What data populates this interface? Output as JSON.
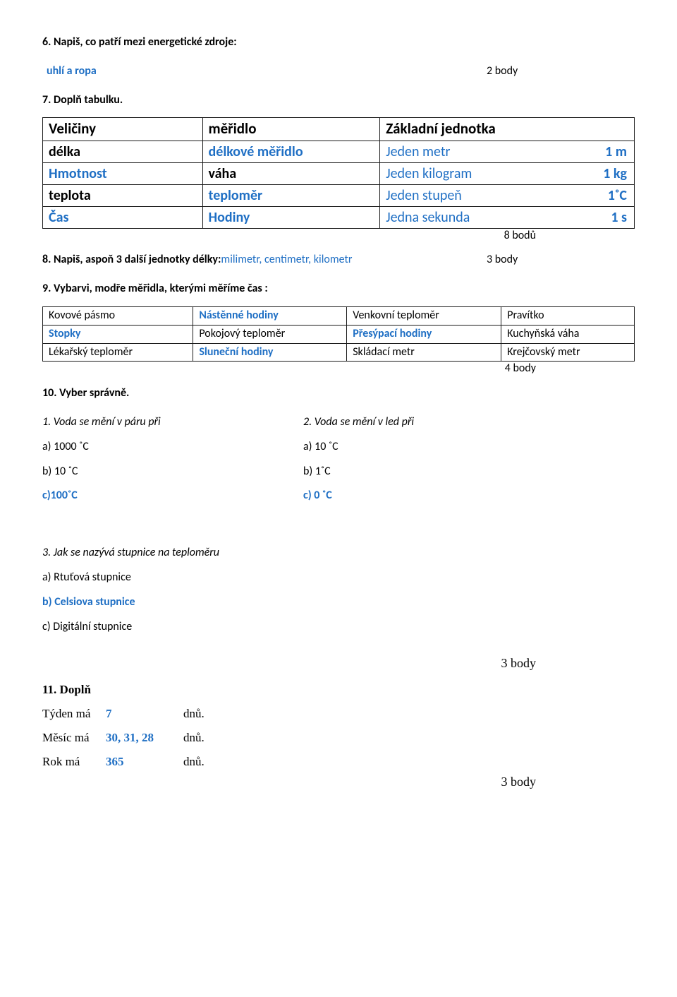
{
  "q6": {
    "title": "6. Napiš, co patří mezi energetické zdroje",
    "answer": "uhlí  a ropa",
    "points": "2 body"
  },
  "q7": {
    "title": "7. Doplň tabulku.",
    "h1": "Veličiny",
    "h2": "měřidlo",
    "h3": "Základní jednotka",
    "rows": [
      {
        "c1": "délka",
        "c2": "délkové měřidlo",
        "u": "Jeden metr",
        "a": "1 m"
      },
      {
        "c1": "Hmotnost",
        "c2": "váha",
        "u": "Jeden kilogram",
        "a": "1 kg"
      },
      {
        "c1": "teplota",
        "c2": "teploměr",
        "u": "Jeden stupeň",
        "a": "1˚C"
      },
      {
        "c1": "Čas",
        "c2": "Hodiny",
        "u": "Jedna sekunda",
        "a": "1 s"
      }
    ],
    "points": "8 bodů"
  },
  "q8": {
    "label": "8. Napiš, aspoň 3 další jednotky délky:",
    "answer": "milimetr,  centimetr,  kilometr",
    "points": "3 body"
  },
  "q9": {
    "title": "9. Vybarvi, modře měřidla, kterými měříme čas :",
    "rows": [
      [
        "Kovové pásmo",
        "Nástěnné hodiny",
        "Venkovní teploměr",
        "Pravítko"
      ],
      [
        "Stopky",
        "Pokojový teploměr",
        "Přesýpací hodiny",
        "Kuchyňská váha"
      ],
      [
        "Lékařský teploměr",
        "Sluneční hodiny",
        "Skládací metr",
        "Krejčovský metr"
      ]
    ],
    "blue_cells": [
      [
        0,
        1
      ],
      [
        1,
        0
      ],
      [
        1,
        2
      ],
      [
        2,
        1
      ]
    ],
    "points": "4 body"
  },
  "q10": {
    "title": "10. Vyber správně.",
    "sub1": "1. Voda se mění v páru při",
    "sub2": "2. Voda se mění v led při",
    "col1": [
      "a) 1000 ˚C",
      "b) 10 ˚C",
      "c)100˚C"
    ],
    "col2": [
      "a) 10 ˚C",
      "b)  1˚C",
      "c) 0 ˚C"
    ],
    "col1_blue_idx": 2,
    "col2_blue_idx": 2,
    "sub3": "3. Jak se nazývá stupnice na teploměru",
    "opts3": [
      "a) Rtuťová stupnice",
      "b) Celsiova stupnice",
      "c) Digitální stupnice"
    ],
    "opts3_blue_idx": 1,
    "points": "3 body"
  },
  "q11": {
    "title": "11. Doplň",
    "rows": [
      {
        "lab": "Týden má",
        "val": "7",
        "unit": "dnů."
      },
      {
        "lab": "Měsíc má",
        "val": "30, 31, 28",
        "unit": "dnů."
      },
      {
        "lab": "Rok má",
        "val": "365",
        "unit": "dnů."
      }
    ],
    "points": "3 body"
  }
}
